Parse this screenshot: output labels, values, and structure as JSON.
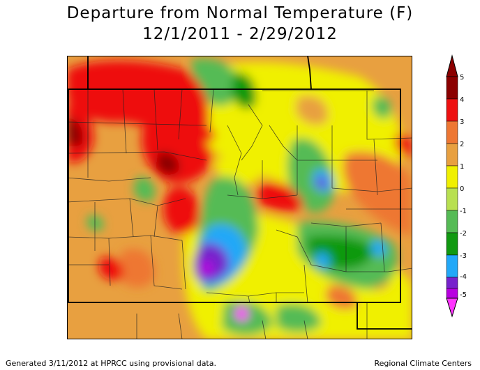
{
  "title": "Departure from Normal Temperature (F)",
  "period": "12/1/2011 - 2/29/2012",
  "legend": {
    "ticks": [
      "5",
      "4",
      "3",
      "2",
      "1",
      "0",
      "-1",
      "-2",
      "-3",
      "-4",
      "-5"
    ],
    "colors": [
      "#8b0000",
      "#ee1111",
      "#ee7733",
      "#e8a040",
      "#f0f000",
      "#b8e050",
      "#55bb55",
      "#119911",
      "#22a8f8",
      "#7722cc",
      "#b800e0",
      "#ff33ff"
    ]
  },
  "footer": {
    "left": "Generated 3/11/2012 at HPRCC using provisional data.",
    "right": "Regional Climate Centers"
  }
}
